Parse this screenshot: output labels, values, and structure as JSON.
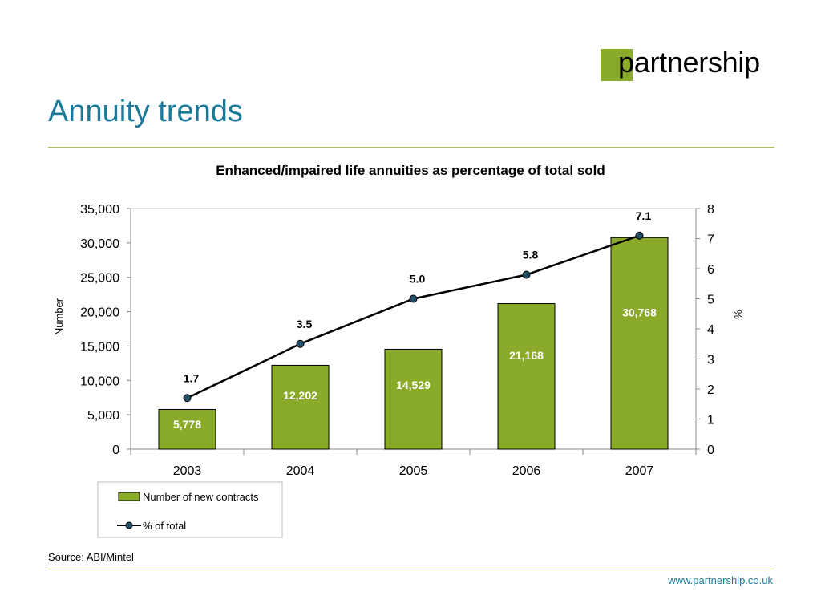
{
  "logo": {
    "text": "partnership"
  },
  "page": {
    "title": "Annuity trends"
  },
  "chart_data": {
    "type": "bar",
    "title": "Enhanced/impaired life annuities as percentage of total sold",
    "categories": [
      "2003",
      "2004",
      "2005",
      "2006",
      "2007"
    ],
    "series": [
      {
        "name": "Number of new contracts",
        "type": "bar",
        "axis": "left",
        "values": [
          5778,
          12202,
          14529,
          21168,
          30768
        ],
        "labels": [
          "5,778",
          "12,202",
          "14,529",
          "21,168",
          "30,768"
        ],
        "color": "#8aaa2a"
      },
      {
        "name": "% of total",
        "type": "line",
        "axis": "right",
        "values": [
          1.7,
          3.5,
          5.0,
          5.8,
          7.1
        ],
        "labels": [
          "1.7",
          "3.5",
          "5.0",
          "5.8",
          "7.1"
        ],
        "color": "#1f4e66"
      }
    ],
    "ylabel": "Number",
    "ylabel_right": "%",
    "ylim": [
      0,
      35000
    ],
    "ylim_right": [
      0,
      8
    ],
    "yticks": [
      "0",
      "5,000",
      "10,000",
      "15,000",
      "20,000",
      "25,000",
      "30,000",
      "35,000"
    ],
    "yticks_right": [
      "0",
      "1",
      "2",
      "3",
      "4",
      "5",
      "6",
      "7",
      "8"
    ],
    "legend_position": "bottom-left",
    "grid": false
  },
  "footer": {
    "source": "Source: ABI/Mintel",
    "url": "www.partnership.co.uk"
  },
  "colors": {
    "title": "#1a7a9a",
    "bar": "#8aaa2a",
    "line": "#000000",
    "marker": "#1f4e66",
    "rule": "#b3bb5a"
  }
}
